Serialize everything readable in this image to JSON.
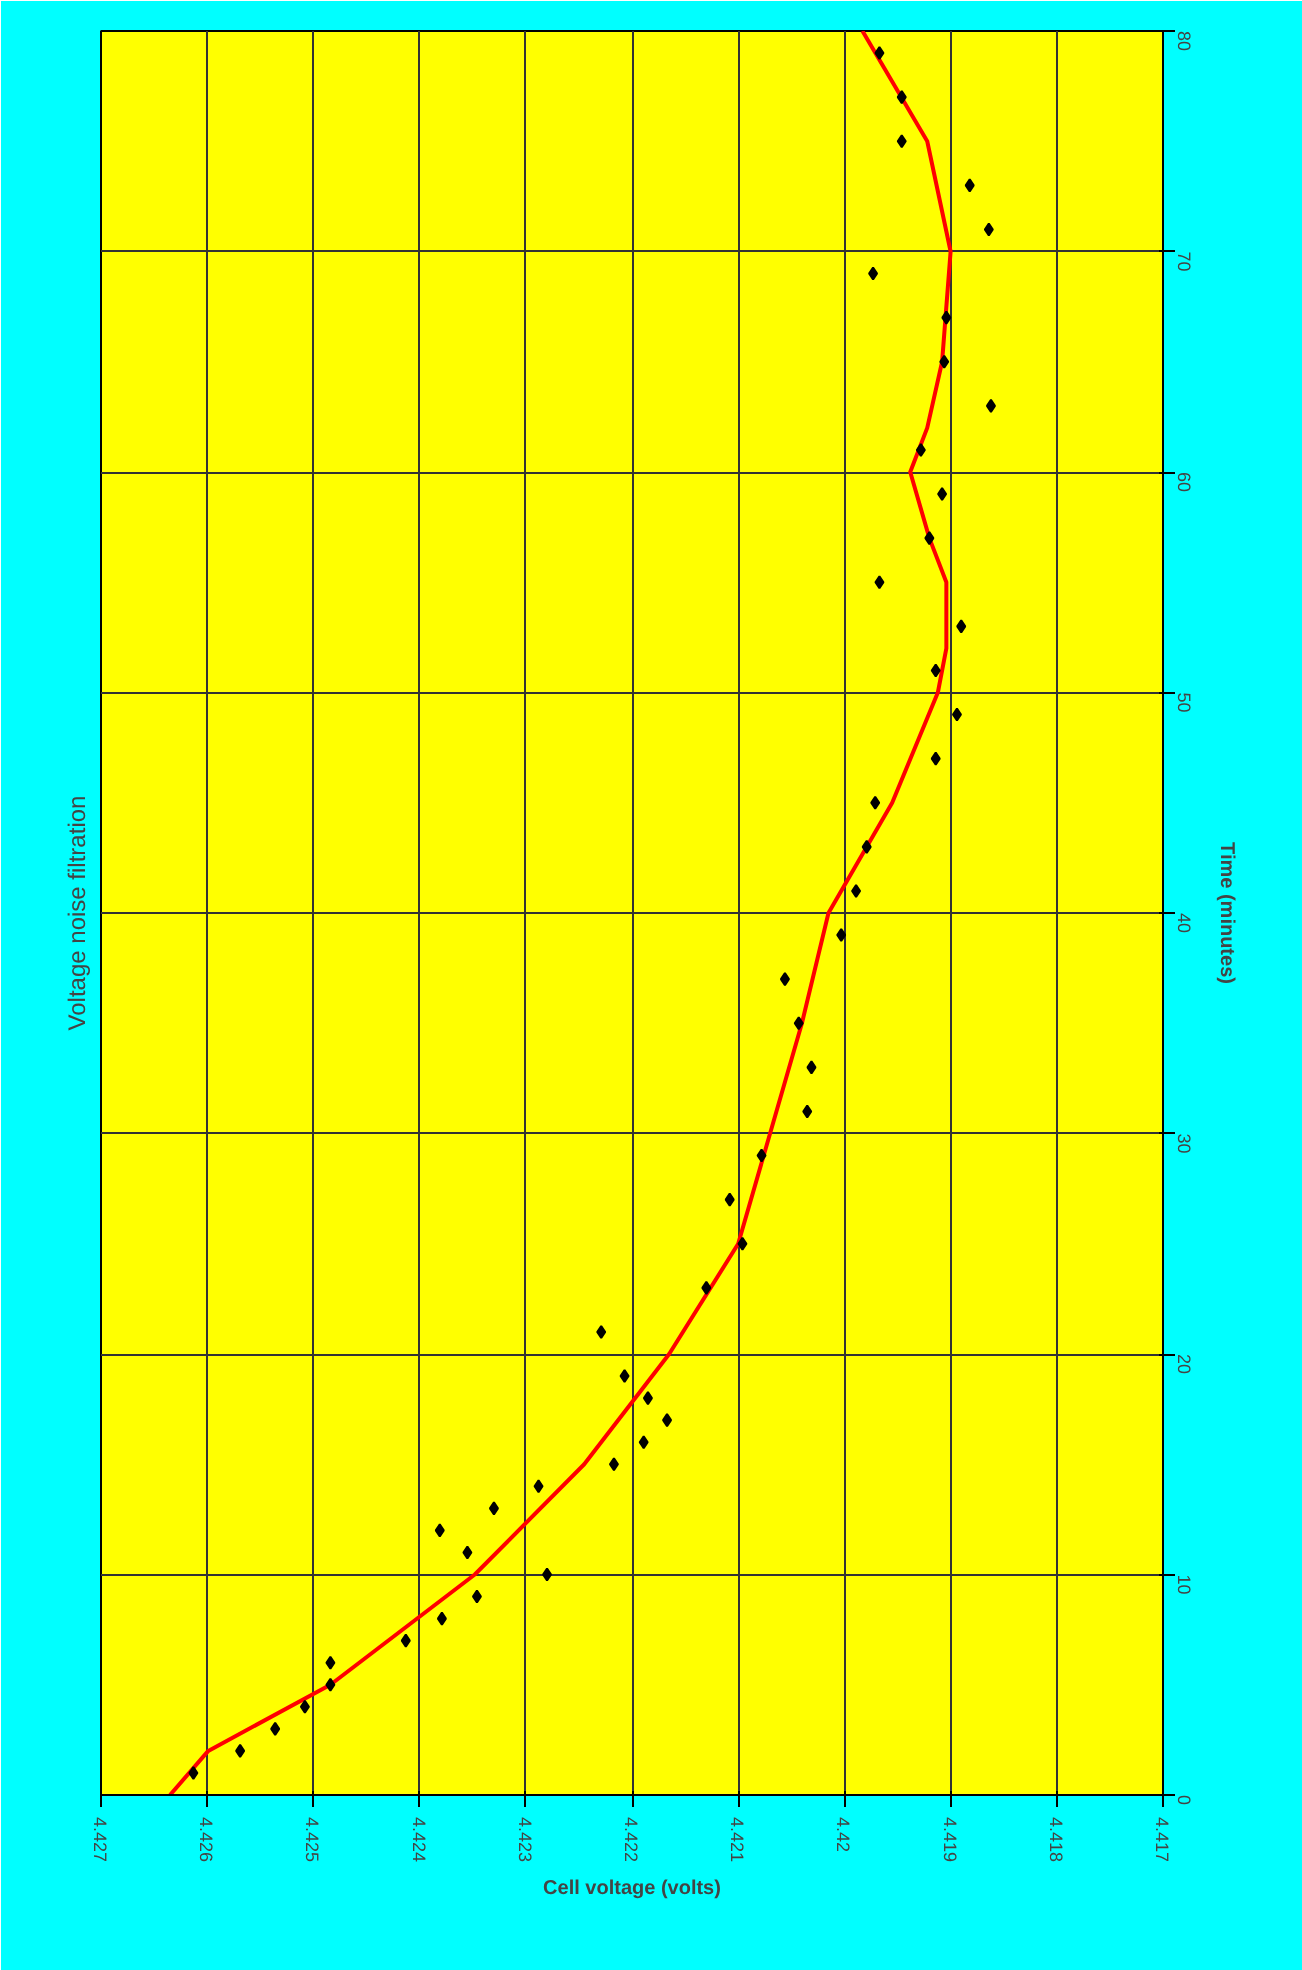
{
  "chart_data": {
    "type": "scatter",
    "title": "Voltage noise filtration",
    "xlabel": "Cell voltage (volts)",
    "ylabel": "Time (minutes)",
    "xlim": [
      4.427,
      4.417
    ],
    "xticks": [
      4.427,
      4.426,
      4.425,
      4.424,
      4.423,
      4.422,
      4.421,
      4.42,
      4.419,
      4.418,
      4.417
    ],
    "ylim": [
      0,
      80
    ],
    "yticks": [
      0,
      10,
      20,
      30,
      40,
      50,
      60,
      70,
      80
    ],
    "grid": true,
    "line_style": "solid",
    "series": [
      {
        "marker": "diamond",
        "color": "#000000",
        "x": [
          4.42613,
          4.42569,
          4.42536,
          4.42508,
          4.42484,
          4.42484,
          4.42413,
          4.42379,
          4.42346,
          4.4228,
          4.42355,
          4.42381,
          4.4233,
          4.42288,
          4.42217,
          4.42189,
          4.42167,
          4.42185,
          4.42207,
          4.42229,
          4.4213,
          4.42096,
          4.42108,
          4.42078,
          4.42035,
          4.42031,
          4.42043,
          4.42056,
          4.42003,
          4.41989,
          4.41979,
          4.41971,
          4.41914,
          4.41894,
          4.41914,
          4.4189,
          4.41967,
          4.4192,
          4.41908,
          4.41928,
          4.41862,
          4.41906,
          4.41904,
          4.41973,
          4.41864,
          4.41882,
          4.41946,
          4.41946,
          4.41967
        ],
        "values": [
          1,
          2,
          3,
          4,
          5,
          6,
          7,
          8,
          9,
          10,
          11,
          12,
          13,
          14,
          15,
          16,
          17,
          18,
          19,
          21,
          23,
          25,
          27,
          29,
          31,
          33,
          35,
          37,
          39,
          41,
          43,
          45,
          47,
          49,
          51,
          53,
          55,
          57,
          59,
          61,
          63,
          65,
          67,
          69,
          71,
          73,
          75,
          77,
          79
        ]
      },
      {
        "type": "line",
        "color": "#ff0000",
        "x": [
          4.42635,
          4.42599,
          4.42484,
          4.42348,
          4.42245,
          4.42165,
          4.421,
          4.4207,
          4.4204,
          4.42015,
          4.41955,
          4.41912,
          4.41904,
          4.41904,
          4.4192,
          4.41938,
          4.41922,
          4.41908,
          4.419,
          4.41922,
          4.41983
        ],
        "values": [
          0,
          2,
          5,
          10,
          15,
          20,
          25,
          30,
          35,
          40,
          45,
          50,
          52,
          55,
          57,
          60,
          62,
          65,
          70,
          75,
          80
        ]
      }
    ]
  }
}
